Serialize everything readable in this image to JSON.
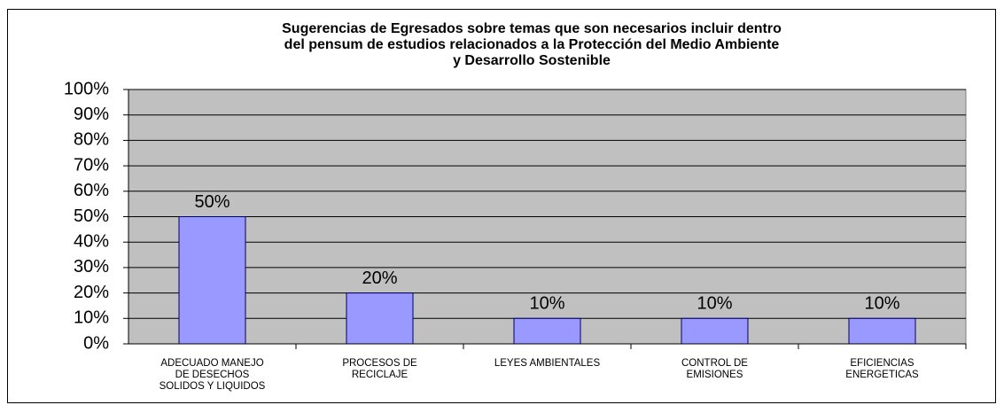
{
  "chart_data": {
    "type": "bar",
    "title": "Sugerencias de Egresados sobre temas que son necesarios  incluir dentro\ndel pensum de estudios relacionados a la Protección del Medio Ambiente\ny Desarrollo Sostenible",
    "categories": [
      "ADECUADO MANEJO\nDE DESECHOS\nSOLIDOS Y LIQUIDOS",
      "PROCESOS DE\nRECICLAJE",
      "LEYES AMBIENTALES",
      "CONTROL DE\nEMISIONES",
      "EFICIENCIAS\nENERGETICAS"
    ],
    "values": [
      50,
      20,
      10,
      10,
      10
    ],
    "value_labels": [
      "50%",
      "20%",
      "10%",
      "10%",
      "10%"
    ],
    "color": "#9999ff",
    "ylim": [
      0,
      100
    ],
    "yticks": [
      {
        "value": 0,
        "label": "0%"
      },
      {
        "value": 10,
        "label": "10%"
      },
      {
        "value": 20,
        "label": "20%"
      },
      {
        "value": 30,
        "label": "30%"
      },
      {
        "value": 40,
        "label": "40%"
      },
      {
        "value": 50,
        "label": "50%"
      },
      {
        "value": 60,
        "label": "60%"
      },
      {
        "value": 70,
        "label": "70%"
      },
      {
        "value": 80,
        "label": "80%"
      },
      {
        "value": 90,
        "label": "90%"
      },
      {
        "value": 100,
        "label": "100%"
      }
    ],
    "grid": true
  }
}
